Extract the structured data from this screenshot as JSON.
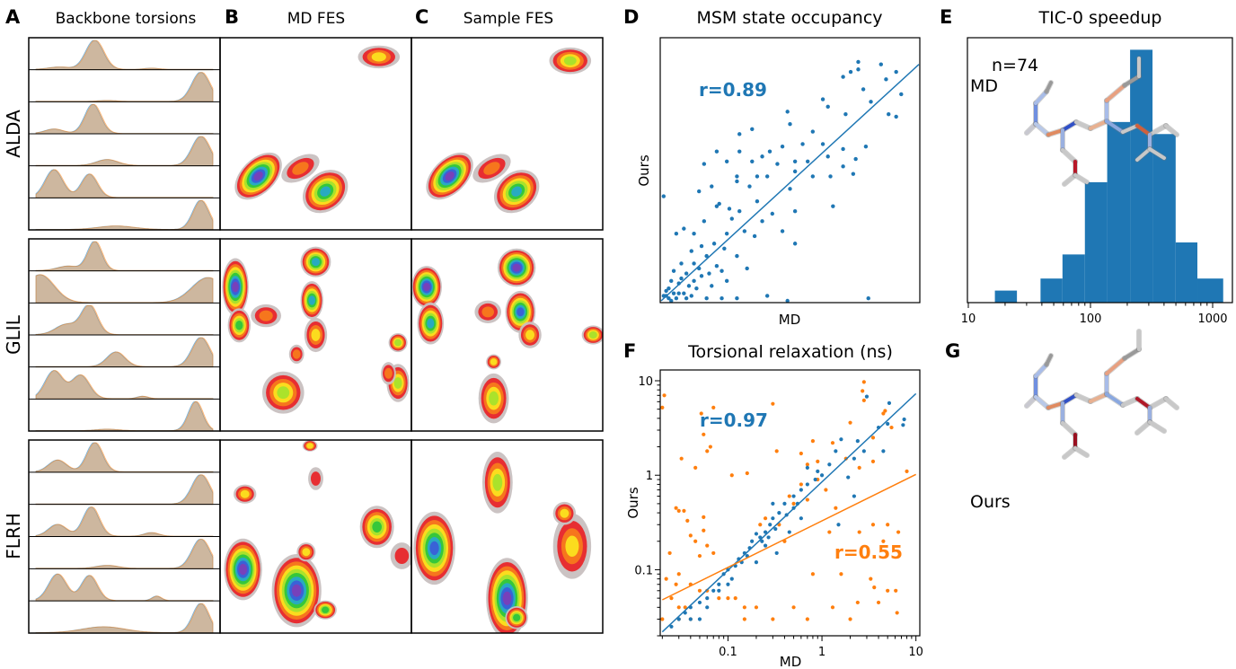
{
  "panel_letters": {
    "A": "A",
    "B": "B",
    "C": "C",
    "D": "D",
    "E": "E",
    "F": "F",
    "G": "G"
  },
  "panel_titles": {
    "A": "Backbone torsions",
    "B": "MD FES",
    "C": "Sample FES",
    "D": "MSM state occupancy",
    "E": "TIC-0 speedup",
    "F": "Torsional relaxation (ns)"
  },
  "peptides": [
    "ALDA",
    "GLIL",
    "FLRH"
  ],
  "colors": {
    "md": "#1f77b4",
    "ours": "#ff7f0e",
    "axis": "#000000"
  },
  "chart_data": [
    {
      "type": "area",
      "panel": "A",
      "title": "Backbone torsions",
      "series": [
        {
          "color": "#1f77b4"
        },
        {
          "color": "#ff7f0e"
        }
      ],
      "rows_per_peptide": 6
    },
    {
      "type": "heatmap",
      "panel": "B",
      "title": "MD FES"
    },
    {
      "type": "heatmap",
      "panel": "C",
      "title": "Sample FES"
    },
    {
      "type": "scatter",
      "panel": "D",
      "title": "MSM state occupancy",
      "xlabel": "MD",
      "ylabel": "Ours",
      "xlim": [
        0,
        1.02
      ],
      "ylim": [
        0,
        1.05
      ],
      "annotation": "r=0.89",
      "fit_line": [
        [
          0,
          0
        ],
        [
          1.02,
          0.95
        ]
      ],
      "points": [
        [
          0.01,
          0.42
        ],
        [
          0.78,
          0.96
        ],
        [
          0.87,
          0.95
        ],
        [
          0.93,
          0.92
        ],
        [
          0.75,
          0.92
        ],
        [
          0.78,
          0.93
        ],
        [
          0.72,
          0.9
        ],
        [
          0.89,
          0.89
        ],
        [
          0.8,
          0.85
        ],
        [
          0.95,
          0.83
        ],
        [
          0.83,
          0.8
        ],
        [
          0.64,
          0.81
        ],
        [
          0.66,
          0.78
        ],
        [
          0.93,
          0.74
        ],
        [
          0.9,
          0.75
        ],
        [
          0.73,
          0.75
        ],
        [
          0.5,
          0.76
        ],
        [
          0.36,
          0.69
        ],
        [
          0.51,
          0.71
        ],
        [
          0.6,
          0.68
        ],
        [
          0.56,
          0.63
        ],
        [
          0.64,
          0.63
        ],
        [
          0.81,
          0.62
        ],
        [
          0.31,
          0.67
        ],
        [
          0.48,
          0.62
        ],
        [
          0.43,
          0.6
        ],
        [
          0.22,
          0.6
        ],
        [
          0.31,
          0.6
        ],
        [
          0.66,
          0.58
        ],
        [
          0.72,
          0.61
        ],
        [
          0.4,
          0.58
        ],
        [
          0.53,
          0.56
        ],
        [
          0.58,
          0.56
        ],
        [
          0.46,
          0.55
        ],
        [
          0.36,
          0.56
        ],
        [
          0.26,
          0.56
        ],
        [
          0.17,
          0.55
        ],
        [
          0.3,
          0.5
        ],
        [
          0.72,
          0.54
        ],
        [
          0.77,
          0.57
        ],
        [
          0.67,
          0.5
        ],
        [
          0.42,
          0.5
        ],
        [
          0.53,
          0.52
        ],
        [
          0.6,
          0.5
        ],
        [
          0.76,
          0.51
        ],
        [
          0.15,
          0.44
        ],
        [
          0.38,
          0.5
        ],
        [
          0.3,
          0.48
        ],
        [
          0.2,
          0.46
        ],
        [
          0.35,
          0.46
        ],
        [
          0.51,
          0.45
        ],
        [
          0.68,
          0.38
        ],
        [
          0.53,
          0.36
        ],
        [
          0.23,
          0.39
        ],
        [
          0.22,
          0.38
        ],
        [
          0.27,
          0.37
        ],
        [
          0.31,
          0.36
        ],
        [
          0.38,
          0.4
        ],
        [
          0.44,
          0.35
        ],
        [
          0.4,
          0.32
        ],
        [
          0.28,
          0.33
        ],
        [
          0.17,
          0.32
        ],
        [
          0.06,
          0.27
        ],
        [
          0.09,
          0.29
        ],
        [
          0.13,
          0.27
        ],
        [
          0.26,
          0.27
        ],
        [
          0.33,
          0.28
        ],
        [
          0.37,
          0.26
        ],
        [
          0.48,
          0.28
        ],
        [
          0.53,
          0.23
        ],
        [
          0.21,
          0.23
        ],
        [
          0.16,
          0.22
        ],
        [
          0.25,
          0.21
        ],
        [
          0.12,
          0.2
        ],
        [
          0.18,
          0.18
        ],
        [
          0.3,
          0.18
        ],
        [
          0.08,
          0.15
        ],
        [
          0.13,
          0.15
        ],
        [
          0.22,
          0.14
        ],
        [
          0.34,
          0.13
        ],
        [
          0.05,
          0.12
        ],
        [
          0.1,
          0.11
        ],
        [
          0.16,
          0.1
        ],
        [
          0.04,
          0.08
        ],
        [
          0.07,
          0.07
        ],
        [
          0.11,
          0.06
        ],
        [
          0.14,
          0.05
        ],
        [
          0.2,
          0.06
        ],
        [
          0.02,
          0.04
        ],
        [
          0.05,
          0.03
        ],
        [
          0.09,
          0.03
        ],
        [
          0.03,
          0.01
        ],
        [
          0.06,
          0.01
        ],
        [
          0.01,
          0.02
        ],
        [
          0.12,
          0.02
        ],
        [
          0.18,
          0.01
        ],
        [
          0.24,
          0.01
        ],
        [
          0.3,
          0.01
        ],
        [
          0.42,
          0.02
        ],
        [
          0.82,
          0.01
        ],
        [
          0.5,
          0.0
        ],
        [
          0.03,
          0.05
        ],
        [
          0.08,
          0.09
        ],
        [
          0.26,
          0.08
        ],
        [
          0.15,
          0.13
        ],
        [
          0.02,
          0.02
        ],
        [
          0.04,
          0.0
        ],
        [
          0.07,
          0.03
        ],
        [
          0.1,
          0.01
        ],
        [
          0.13,
          0.08
        ],
        [
          0.19,
          0.11
        ],
        [
          0.24,
          0.12
        ]
      ]
    },
    {
      "type": "bar",
      "panel": "E",
      "title": "TIC-0 speedup",
      "xscale": "log",
      "xlim": [
        10,
        1400
      ],
      "ylim": [
        0,
        22
      ],
      "xticks": [
        "10",
        "100",
        "1000"
      ],
      "annotation": "n=74",
      "bin_edges": [
        16.5,
        25,
        39,
        59,
        90,
        137,
        211,
        322,
        498,
        750,
        1220
      ],
      "counts": [
        1,
        0,
        2,
        4,
        10,
        15,
        21,
        14,
        5,
        2
      ]
    },
    {
      "type": "scatter",
      "panel": "F",
      "title": "Torsional relaxation (ns)",
      "xlabel": "MD",
      "ylabel": "Ours",
      "xscale": "log",
      "yscale": "log",
      "xlim": [
        0.019,
        11
      ],
      "ylim": [
        0.02,
        13
      ],
      "xticks": [
        "0.1",
        "1",
        "10"
      ],
      "yticks": [
        "0.1",
        "1",
        "10"
      ],
      "series": [
        {
          "color": "#1f77b4",
          "annotation": "r=0.97",
          "fit_line": [
            [
              0.02,
              0.022
            ],
            [
              10,
              7.3
            ]
          ],
          "points": [
            [
              3,
              6.8
            ],
            [
              5.2,
              5.8
            ],
            [
              7.5,
              3.9
            ],
            [
              7.3,
              3.4
            ],
            [
              5,
              3.5
            ],
            [
              4,
              3.2
            ],
            [
              2.4,
              2.3
            ],
            [
              2.2,
              1.5
            ],
            [
              1.6,
              2.4
            ],
            [
              1.4,
              1.8
            ],
            [
              1.2,
              1.3
            ],
            [
              0.9,
              1.1
            ],
            [
              0.85,
              0.9
            ],
            [
              0.7,
              0.8
            ],
            [
              1.9,
              0.95
            ],
            [
              0.6,
              0.7
            ],
            [
              0.5,
              0.6
            ],
            [
              0.5,
              0.45
            ],
            [
              0.4,
              0.5
            ],
            [
              0.35,
              0.4
            ],
            [
              0.3,
              0.35
            ],
            [
              0.28,
              0.3
            ],
            [
              0.25,
              0.25
            ],
            [
              0.22,
              0.22
            ],
            [
              0.2,
              0.24
            ],
            [
              0.18,
              0.2
            ],
            [
              0.17,
              0.17
            ],
            [
              0.15,
              0.15
            ],
            [
              0.13,
              0.13
            ],
            [
              0.12,
              0.11
            ],
            [
              0.1,
              0.1
            ],
            [
              0.09,
              0.09
            ],
            [
              0.11,
              0.08
            ],
            [
              0.08,
              0.07
            ],
            [
              0.07,
              0.06
            ],
            [
              0.06,
              0.05
            ],
            [
              0.05,
              0.045
            ],
            [
              0.04,
              0.04
            ],
            [
              0.035,
              0.035
            ],
            [
              0.03,
              0.03
            ],
            [
              0.025,
              0.025
            ],
            [
              0.06,
              0.04
            ],
            [
              0.08,
              0.06
            ],
            [
              0.04,
              0.03
            ],
            [
              0.05,
              0.03
            ],
            [
              0.1,
              0.07
            ],
            [
              0.3,
              0.5
            ],
            [
              0.6,
              0.35
            ],
            [
              0.45,
              0.25
            ],
            [
              1.5,
              0.3
            ],
            [
              0.2,
              0.12
            ],
            [
              0.33,
              0.15
            ],
            [
              0.7,
              1.2
            ],
            [
              1,
              1
            ],
            [
              0.25,
              0.18
            ],
            [
              2.2,
              0.6
            ],
            [
              4.5,
              1.8
            ],
            [
              2.8,
              1.8
            ],
            [
              0.23,
              0.2
            ],
            [
              0.27,
              0.22
            ],
            [
              0.32,
              0.27
            ],
            [
              0.42,
              0.38
            ],
            [
              0.55,
              0.5
            ],
            [
              0.14,
              0.12
            ],
            [
              0.16,
              0.14
            ]
          ]
        },
        {
          "color": "#ff7f0e",
          "annotation": "r=0.55",
          "fit_line": [
            [
              0.02,
              0.048
            ],
            [
              10,
              1.02
            ]
          ],
          "points": [
            [
              0.021,
              7
            ],
            [
              0.02,
              5.2
            ],
            [
              0.07,
              5.2
            ],
            [
              0.3,
              5.7
            ],
            [
              0.052,
              4.5
            ],
            [
              0.055,
              2.7
            ],
            [
              0.065,
              2
            ],
            [
              0.06,
              1.8
            ],
            [
              0.032,
              1.5
            ],
            [
              0.045,
              1.2
            ],
            [
              0.11,
              1
            ],
            [
              0.16,
              1.05
            ],
            [
              0.33,
              1.8
            ],
            [
              0.5,
              0.5
            ],
            [
              0.028,
              0.45
            ],
            [
              0.03,
              0.42
            ],
            [
              0.034,
              0.42
            ],
            [
              0.037,
              0.33
            ],
            [
              0.055,
              0.36
            ],
            [
              0.055,
              0.26
            ],
            [
              0.04,
              0.23
            ],
            [
              0.045,
              0.2
            ],
            [
              0.06,
              0.18
            ],
            [
              0.07,
              0.15
            ],
            [
              0.05,
              0.14
            ],
            [
              0.024,
              0.15
            ],
            [
              0.022,
              0.08
            ],
            [
              0.03,
              0.09
            ],
            [
              0.028,
              0.07
            ],
            [
              0.04,
              0.07
            ],
            [
              0.05,
              0.06
            ],
            [
              0.06,
              0.06
            ],
            [
              0.08,
              0.05
            ],
            [
              0.1,
              0.05
            ],
            [
              0.12,
              0.05
            ],
            [
              0.025,
              0.05
            ],
            [
              0.03,
              0.04
            ],
            [
              0.035,
              0.04
            ],
            [
              0.04,
              0.03
            ],
            [
              0.03,
              0.03
            ],
            [
              0.02,
              0.03
            ],
            [
              0.15,
              0.04
            ],
            [
              0.2,
              0.04
            ],
            [
              0.3,
              0.03
            ],
            [
              0.5,
              0.04
            ],
            [
              0.15,
              0.03
            ],
            [
              2.8,
              9.7
            ],
            [
              2.7,
              7.8
            ],
            [
              2.8,
              6.2
            ],
            [
              4.5,
              4.5
            ],
            [
              4.7,
              4.8
            ],
            [
              5.5,
              3.2
            ],
            [
              3.5,
              2.5
            ],
            [
              2,
              3.6
            ],
            [
              1.3,
              2.2
            ],
            [
              0.8,
              2.3
            ],
            [
              0.6,
              1.7
            ],
            [
              0.7,
              1.3
            ],
            [
              0.9,
              0.9
            ],
            [
              1.4,
              0.45
            ],
            [
              0.7,
              0.55
            ],
            [
              1.2,
              0.25
            ],
            [
              2.5,
              0.25
            ],
            [
              3.5,
              0.3
            ],
            [
              4.5,
              0.2
            ],
            [
              5,
              0.3
            ],
            [
              6.5,
              0.25
            ],
            [
              3.3,
              0.08
            ],
            [
              3.6,
              0.065
            ],
            [
              5,
              0.06
            ],
            [
              6.1,
              0.06
            ],
            [
              6.3,
              0.035
            ],
            [
              2,
              0.03
            ],
            [
              1.3,
              0.04
            ],
            [
              0.8,
              0.09
            ],
            [
              0.7,
              0.03
            ],
            [
              1.6,
              0.09
            ],
            [
              2.4,
              0.045
            ],
            [
              4,
              0.045
            ],
            [
              0.35,
              0.3
            ],
            [
              0.25,
              0.35
            ],
            [
              0.4,
              0.2
            ],
            [
              0.22,
              0.3
            ],
            [
              1.8,
              1.5
            ],
            [
              2.5,
              1.2
            ],
            [
              3.5,
              1.4
            ],
            [
              8,
              1.1
            ],
            [
              0.6,
              0.8
            ],
            [
              0.45,
              0.6
            ],
            [
              1.1,
              0.7
            ],
            [
              0.9,
              1.4
            ]
          ]
        }
      ]
    }
  ],
  "panel_G": {
    "md_label": "MD",
    "ours_label": "Ours"
  }
}
